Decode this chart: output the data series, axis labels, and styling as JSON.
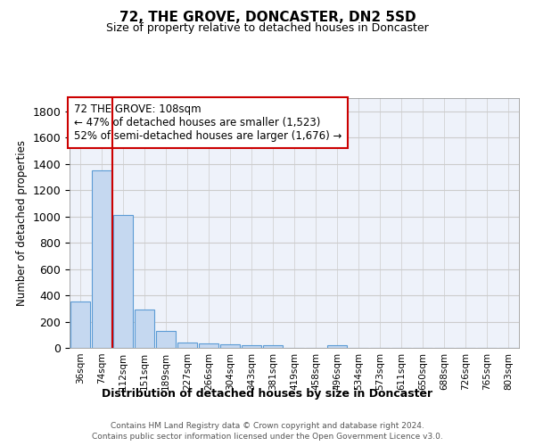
{
  "title": "72, THE GROVE, DONCASTER, DN2 5SD",
  "subtitle": "Size of property relative to detached houses in Doncaster",
  "xlabel": "Distribution of detached houses by size in Doncaster",
  "ylabel": "Number of detached properties",
  "bar_labels": [
    "36sqm",
    "74sqm",
    "112sqm",
    "151sqm",
    "189sqm",
    "227sqm",
    "266sqm",
    "304sqm",
    "343sqm",
    "381sqm",
    "419sqm",
    "458sqm",
    "496sqm",
    "534sqm",
    "573sqm",
    "611sqm",
    "650sqm",
    "688sqm",
    "726sqm",
    "765sqm",
    "803sqm"
  ],
  "bar_values": [
    355,
    1348,
    1010,
    290,
    130,
    42,
    35,
    30,
    22,
    18,
    0,
    0,
    22,
    0,
    0,
    0,
    0,
    0,
    0,
    0,
    0
  ],
  "bar_color": "#c5d8f0",
  "bar_edge_color": "#5b9bd5",
  "property_line_x": 2.0,
  "property_line_color": "#cc0000",
  "annotation_text": "72 THE GROVE: 108sqm\n← 47% of detached houses are smaller (1,523)\n52% of semi-detached houses are larger (1,676) →",
  "annotation_box_color": "#cc0000",
  "ylim": [
    0,
    1900
  ],
  "yticks": [
    0,
    200,
    400,
    600,
    800,
    1000,
    1200,
    1400,
    1600,
    1800
  ],
  "grid_color": "#cccccc",
  "bg_color": "#eef2fa",
  "footer_line1": "Contains HM Land Registry data © Crown copyright and database right 2024.",
  "footer_line2": "Contains public sector information licensed under the Open Government Licence v3.0."
}
